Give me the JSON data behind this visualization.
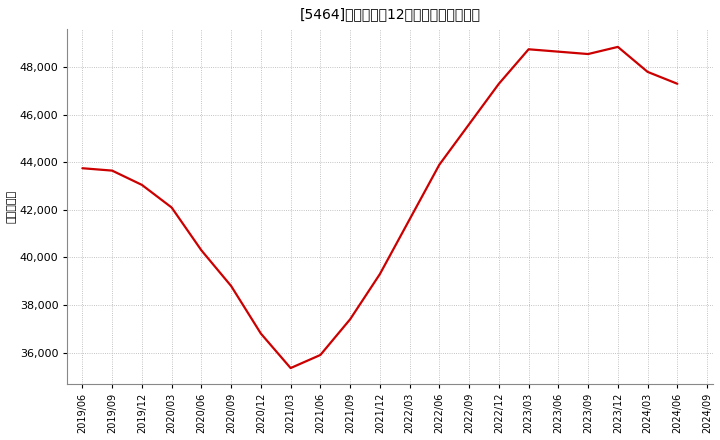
{
  "title": "[5464]　売上高の12か月移動合計の推移",
  "ylabel": "（百万円）",
  "line_color": "#cc0000",
  "background_color": "#ffffff",
  "grid_color": "#b0b0b0",
  "dates": [
    "2019/06",
    "2019/09",
    "2019/12",
    "2020/03",
    "2020/06",
    "2020/09",
    "2020/12",
    "2021/03",
    "2021/06",
    "2021/09",
    "2021/12",
    "2022/03",
    "2022/06",
    "2022/09",
    "2022/12",
    "2023/03",
    "2023/06",
    "2023/09",
    "2023/12",
    "2024/03",
    "2024/06"
  ],
  "values": [
    43750,
    43650,
    43050,
    42100,
    40300,
    38800,
    36800,
    35350,
    35900,
    37400,
    39300,
    41600,
    43900,
    45600,
    47300,
    48750,
    48650,
    48550,
    48850,
    47800,
    47300
  ],
  "yticks": [
    36000,
    38000,
    40000,
    42000,
    44000,
    46000,
    48000
  ],
  "ylim": [
    34700,
    49600
  ],
  "xtick_labels": [
    "2019/06",
    "2019/09",
    "2019/12",
    "2020/03",
    "2020/06",
    "2020/09",
    "2020/12",
    "2021/03",
    "2021/06",
    "2021/09",
    "2021/12",
    "2022/03",
    "2022/06",
    "2022/09",
    "2022/12",
    "2023/03",
    "2023/06",
    "2023/09",
    "2023/12",
    "2024/03",
    "2024/06",
    "2024/09"
  ],
  "title_fontsize": 10,
  "tick_fontsize": 7,
  "ylabel_fontsize": 8,
  "linewidth": 1.6
}
